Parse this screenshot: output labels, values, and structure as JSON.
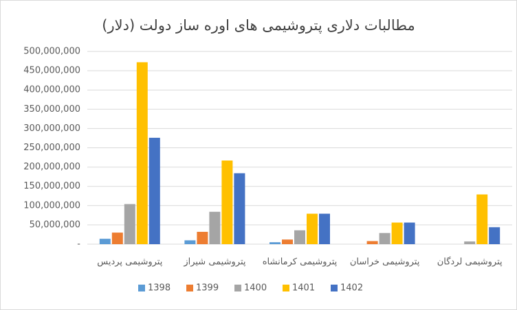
{
  "chart_data": {
    "type": "bar",
    "title": "مطالبات دلاری پتروشیمی های اوره ساز دولت (دلار)",
    "categories": [
      "پتروشیمی پردیس",
      "پتروشیمی شیراز",
      "پتروشیمی کرمانشاه",
      "پتروشیمی خراسان",
      "پتروشیمی لردگان"
    ],
    "series": [
      {
        "name": "1398",
        "color": "#5b9bd5",
        "values": [
          14000000,
          10000000,
          5000000,
          0,
          0
        ]
      },
      {
        "name": "1399",
        "color": "#ed7d31",
        "values": [
          30000000,
          32000000,
          12000000,
          8000000,
          0
        ]
      },
      {
        "name": "1400",
        "color": "#a5a5a5",
        "values": [
          104000000,
          84000000,
          36000000,
          29000000,
          7000000
        ]
      },
      {
        "name": "1401",
        "color": "#ffc000",
        "values": [
          472000000,
          217000000,
          79000000,
          56000000,
          129000000
        ]
      },
      {
        "name": "1402",
        "color": "#4472c4",
        "values": [
          276000000,
          184000000,
          79000000,
          56000000,
          44000000
        ]
      }
    ],
    "ylim": [
      0,
      500000000
    ],
    "yticks": [
      {
        "value": 0,
        "label": "-"
      },
      {
        "value": 50000000,
        "label": "50,000,000"
      },
      {
        "value": 100000000,
        "label": "100,000,000"
      },
      {
        "value": 150000000,
        "label": "150,000,000"
      },
      {
        "value": 200000000,
        "label": "200,000,000"
      },
      {
        "value": 250000000,
        "label": "250,000,000"
      },
      {
        "value": 300000000,
        "label": "300,000,000"
      },
      {
        "value": 350000000,
        "label": "350,000,000"
      },
      {
        "value": 400000000,
        "label": "400,000,000"
      },
      {
        "value": 450000000,
        "label": "450,000,000"
      },
      {
        "value": 500000000,
        "label": "500,000,000"
      }
    ],
    "grid": true,
    "legend": "bottom"
  }
}
